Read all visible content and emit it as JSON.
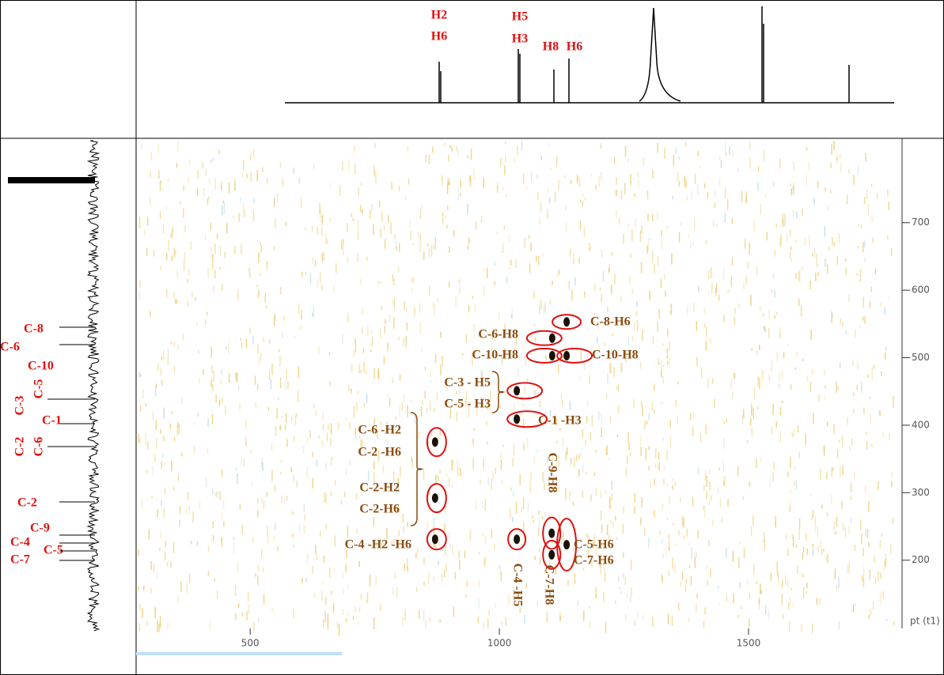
{
  "chart_data": {
    "type": "scatter",
    "x": [
      1135,
      1106,
      1106,
      1135,
      1035,
      1035,
      871,
      871,
      871,
      1035,
      1105,
      1105,
      1135
    ],
    "values": [
      553,
      529,
      503,
      503,
      451,
      409,
      375,
      292,
      231,
      231,
      240,
      208,
      223
    ],
    "point_labels": [
      [
        "C-8-H6"
      ],
      [
        "C-6-H8"
      ],
      [
        "C-10-H8"
      ],
      [
        "C-10-H8"
      ],
      [
        "C-3 - H5",
        "C-5 - H3"
      ],
      [
        "C-1 -H3"
      ],
      [
        "C-6 -H2",
        "C-2 -H6"
      ],
      [
        "C-2-H2",
        "C-2-H6"
      ],
      [
        "C-4 -H2 -H6"
      ],
      [
        "C-4 -H5"
      ],
      [
        "C-9-H8"
      ],
      [
        "C-7-H8"
      ],
      [
        "C-5-H6",
        "C-7-H6"
      ]
    ],
    "color": "#1a1208",
    "xlim": [
      271,
      1797
    ],
    "ylim": [
      99,
      825
    ],
    "xticks": [
      500,
      1000,
      1500
    ],
    "yticks": [
      200,
      300,
      400,
      500,
      600,
      700
    ],
    "y_axis_label": "pt (t1)"
  },
  "f2_labels": [
    "H2",
    "H6",
    "H5",
    "H3",
    "H8",
    "H6"
  ],
  "f1_labels": [
    "C-8",
    "C-6",
    "C-10",
    "C-3",
    "C-5",
    "C-1",
    "C-2",
    "C-6",
    "C-2",
    "C-9",
    "C-4",
    "C-5",
    "C-7"
  ]
}
